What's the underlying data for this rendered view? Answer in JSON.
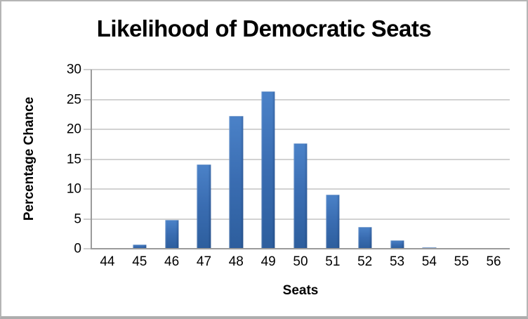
{
  "chart_data": {
    "type": "bar",
    "title": "Likelihood of Democratic Seats",
    "xlabel": "Seats",
    "ylabel": "Percentage Chance",
    "categories": [
      "44",
      "45",
      "46",
      "47",
      "48",
      "49",
      "50",
      "51",
      "52",
      "53",
      "54",
      "55",
      "56"
    ],
    "values": [
      0.1,
      0.7,
      4.8,
      14.1,
      22.2,
      26.4,
      17.6,
      9.1,
      3.6,
      1.4,
      0.2,
      0.1,
      0
    ],
    "ylim": [
      0,
      30
    ],
    "yticks": [
      0,
      5,
      10,
      15,
      20,
      25,
      30
    ],
    "grid": true,
    "legend_position": "none",
    "bar_color_top": "#4b82c8",
    "bar_color_bottom": "#2d5e9d",
    "gridline_color": "#a6a6a6",
    "axis_color": "#9b9b9b",
    "frame_color": "#b5b5b5",
    "background": "#ffffff"
  }
}
